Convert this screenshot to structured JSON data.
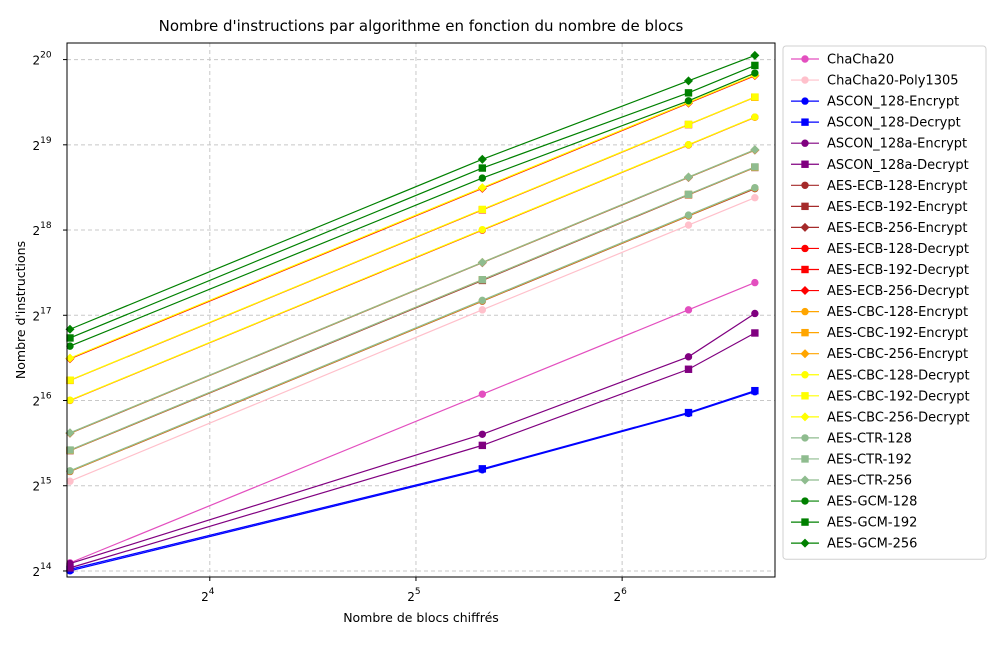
{
  "chart_data": {
    "type": "line",
    "title": "Nombre d'instructions par algorithme en fonction du nombre de blocs",
    "xlabel": "Nombre de blocs chiffrés",
    "ylabel": "Nombre d'instructions",
    "xscale": "log2",
    "yscale": "log2",
    "x_ticks": [
      {
        "base": "2",
        "exp": "4",
        "value": 16
      },
      {
        "base": "2",
        "exp": "5",
        "value": 32
      },
      {
        "base": "2",
        "exp": "6",
        "value": 64
      }
    ],
    "y_ticks": [
      {
        "base": "2",
        "exp": "14",
        "value": 16384
      },
      {
        "base": "2",
        "exp": "15",
        "value": 32768
      },
      {
        "base": "2",
        "exp": "16",
        "value": 65536
      },
      {
        "base": "2",
        "exp": "17",
        "value": 131072
      },
      {
        "base": "2",
        "exp": "18",
        "value": 262144
      },
      {
        "base": "2",
        "exp": "19",
        "value": 524288
      },
      {
        "base": "2",
        "exp": "20",
        "value": 1048576
      }
    ],
    "xlim": [
      9.9,
      107
    ],
    "ylim": [
      15600,
      1200000
    ],
    "grid": true,
    "legend_position": "right, outside",
    "x": [
      10,
      40,
      80,
      100
    ],
    "series": [
      {
        "name": "ChaCha20",
        "color": "#e34fbf",
        "marker": "circle",
        "values": [
          17500,
          69000,
          137000,
          171000
        ]
      },
      {
        "name": "ChaCha20-Poly1305",
        "color": "#ffc0cb",
        "marker": "circle",
        "values": [
          34000,
          137000,
          273000,
          341000
        ]
      },
      {
        "name": "ASCON_128-Encrypt",
        "color": "#0000ff",
        "marker": "circle",
        "values": [
          16400,
          37300,
          59000,
          70400
        ]
      },
      {
        "name": "ASCON_128-Decrypt",
        "color": "#0000ff",
        "marker": "square",
        "values": [
          16600,
          37600,
          59400,
          71000
        ]
      },
      {
        "name": "ASCON_128a-Encrypt",
        "color": "#800080",
        "marker": "circle",
        "values": [
          17400,
          49800,
          93500,
          133000
        ]
      },
      {
        "name": "ASCON_128a-Decrypt",
        "color": "#800080",
        "marker": "square",
        "values": [
          16800,
          45500,
          84500,
          113500
        ]
      },
      {
        "name": "AES-ECB-128-Encrypt",
        "color": "#a52a2a",
        "marker": "circle",
        "values": [
          36800,
          147000,
          294000,
          367000
        ]
      },
      {
        "name": "AES-ECB-192-Encrypt",
        "color": "#a52a2a",
        "marker": "square",
        "values": [
          43600,
          174000,
          349000,
          436000
        ]
      },
      {
        "name": "AES-ECB-256-Encrypt",
        "color": "#a52a2a",
        "marker": "diamond",
        "values": [
          50200,
          201000,
          402000,
          502000
        ]
      },
      {
        "name": "AES-ECB-128-Decrypt",
        "color": "#ff0000",
        "marker": "circle",
        "values": [
          65600,
          262000,
          524000,
          656000
        ]
      },
      {
        "name": "AES-ECB-192-Decrypt",
        "color": "#ff0000",
        "marker": "square",
        "values": [
          77200,
          309000,
          618000,
          772000
        ]
      },
      {
        "name": "AES-ECB-256-Decrypt",
        "color": "#ff0000",
        "marker": "diamond",
        "values": [
          92000,
          368000,
          736000,
          920000
        ]
      },
      {
        "name": "AES-CBC-128-Encrypt",
        "color": "#ffa500",
        "marker": "circle",
        "values": [
          36900,
          147500,
          295000,
          369000
        ]
      },
      {
        "name": "AES-CBC-192-Encrypt",
        "color": "#ffa500",
        "marker": "square",
        "values": [
          43700,
          175000,
          350000,
          437000
        ]
      },
      {
        "name": "AES-CBC-256-Encrypt",
        "color": "#ffa500",
        "marker": "diamond",
        "values": [
          50300,
          201500,
          403000,
          503000
        ]
      },
      {
        "name": "AES-CBC-128-Decrypt",
        "color": "#ffff00",
        "marker": "circle",
        "values": [
          65700,
          263000,
          525000,
          657000
        ]
      },
      {
        "name": "AES-CBC-192-Decrypt",
        "color": "#ffff00",
        "marker": "square",
        "values": [
          77300,
          310000,
          619000,
          773000
        ]
      },
      {
        "name": "AES-CBC-256-Decrypt",
        "color": "#ffff00",
        "marker": "diamond",
        "values": [
          92500,
          370000,
          740000,
          925000
        ]
      },
      {
        "name": "AES-CTR-128",
        "color": "#8fbc8f",
        "marker": "circle",
        "values": [
          37000,
          148000,
          296000,
          370000
        ]
      },
      {
        "name": "AES-CTR-192",
        "color": "#8fbc8f",
        "marker": "square",
        "values": [
          43800,
          175000,
          350500,
          438000
        ]
      },
      {
        "name": "AES-CTR-256",
        "color": "#8fbc8f",
        "marker": "diamond",
        "values": [
          50400,
          201500,
          403500,
          504000
        ]
      },
      {
        "name": "AES-GCM-128",
        "color": "#008000",
        "marker": "circle",
        "values": [
          102000,
          400000,
          750000,
          940000
        ]
      },
      {
        "name": "AES-GCM-192",
        "color": "#008000",
        "marker": "square",
        "values": [
          109000,
          434000,
          800000,
          1000000
        ]
      },
      {
        "name": "AES-GCM-256",
        "color": "#008000",
        "marker": "diamond",
        "values": [
          117000,
          466000,
          882000,
          1085000
        ]
      }
    ]
  }
}
